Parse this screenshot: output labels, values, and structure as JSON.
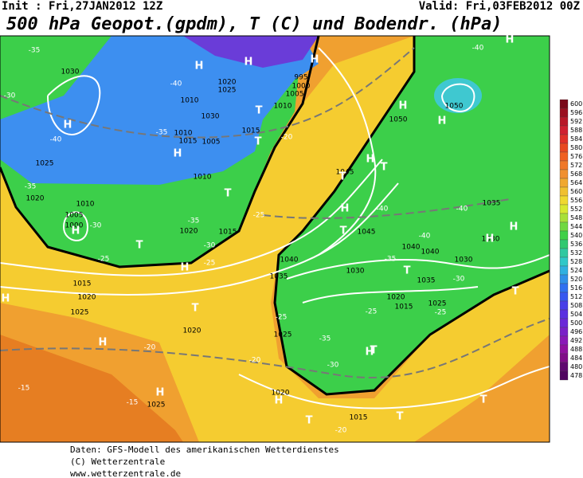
{
  "header": {
    "init": "Init : Fri,27JAN2012 12Z",
    "valid": "Valid: Fri,03FEB2012 00Z",
    "title": "500 hPa Geopot.(gpdm), T (C) und Bodendr. (hPa)"
  },
  "footer": [
    "Daten: GFS-Modell des amerikanischen Wetterdienstes",
    "(C) Wetterzentrale",
    "www.wetterzentrale.de"
  ],
  "colorbar": {
    "labels": [
      "600",
      "596",
      "592",
      "588",
      "584",
      "580",
      "576",
      "572",
      "568",
      "564",
      "560",
      "556",
      "552",
      "548",
      "544",
      "540",
      "536",
      "532",
      "528",
      "524",
      "520",
      "516",
      "512",
      "508",
      "504",
      "500",
      "496",
      "492",
      "488",
      "484",
      "480",
      "478"
    ],
    "colors": [
      "#7a0a1a",
      "#9a1020",
      "#b81828",
      "#d02030",
      "#e03028",
      "#e84820",
      "#f06020",
      "#f07828",
      "#f09030",
      "#f0a830",
      "#f0c030",
      "#f0d830",
      "#d8e830",
      "#a8e038",
      "#70d840",
      "#40d048",
      "#30c870",
      "#30c8a0",
      "#30c8c8",
      "#30b0e0",
      "#3090e8",
      "#3070f0",
      "#3858f0",
      "#4840e8",
      "#5a30e0",
      "#6a28d8",
      "#7a20c8",
      "#8a18b8",
      "#9010a0",
      "#800c88",
      "#600870",
      "#500660"
    ]
  },
  "map_labels": [
    "1030",
    "1010",
    "1020",
    "1025",
    "1010",
    "995",
    "1000",
    "1005",
    "1030",
    "1015",
    "1010",
    "1015",
    "1005",
    "1010",
    "1025",
    "1020",
    "1010",
    "1005",
    "1000",
    "1020",
    "1015",
    "1045",
    "1050",
    "1050",
    "1045",
    "1040",
    "1035",
    "1030",
    "1040",
    "1040",
    "1030",
    "1035",
    "1025",
    "1020",
    "1015",
    "1035",
    "1030",
    "1015",
    "1020",
    "1025",
    "1020",
    "1025",
    "1025",
    "1020",
    "1015",
    "-35",
    "-40",
    "-35",
    "-40",
    "-35",
    "-30",
    "-25",
    "-35",
    "-30",
    "-25",
    "-20",
    "-25",
    "-40",
    "-40",
    "-40",
    "-35",
    "-25",
    "-30",
    "-35",
    "-25",
    "-20",
    "-20",
    "-15",
    "-15",
    "-20",
    "-30",
    "-25",
    "-40",
    "-30",
    "H",
    "H",
    "H",
    "H",
    "H",
    "H",
    "H",
    "H",
    "H",
    "H",
    "H",
    "H",
    "H",
    "H",
    "H",
    "H",
    "H",
    "H",
    "H",
    "T",
    "T",
    "T",
    "T",
    "T",
    "T",
    "T",
    "T",
    "T",
    "T",
    "T",
    "T",
    "T",
    "T"
  ]
}
